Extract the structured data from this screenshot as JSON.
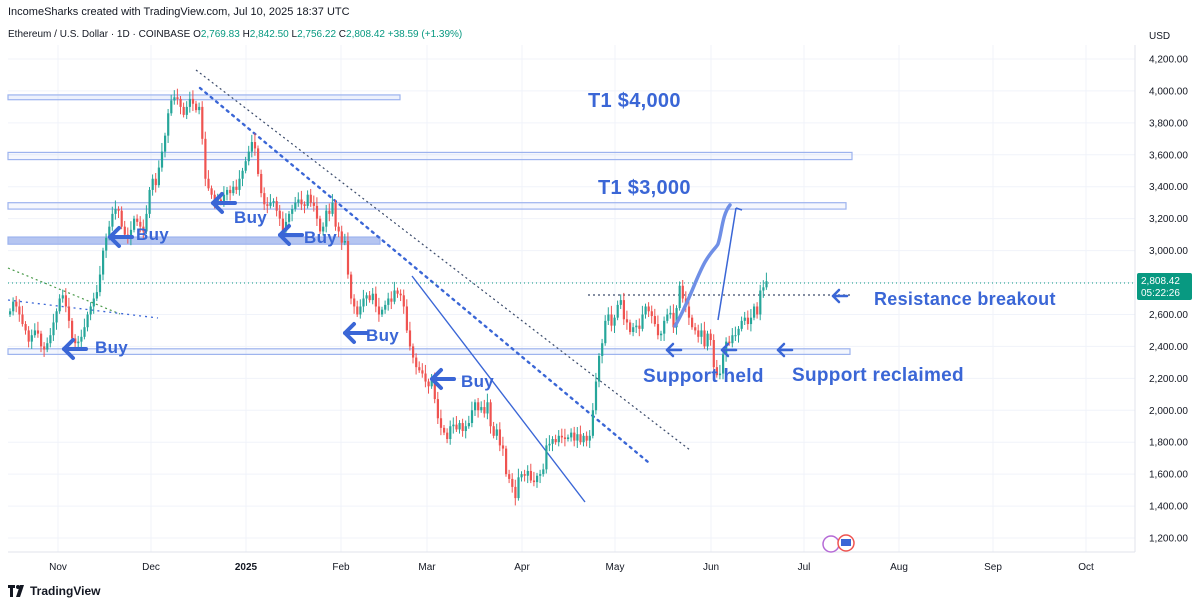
{
  "header": {
    "creator": "IncomeSharks created with TradingView.com, Jul 10, 2025 18:37 UTC",
    "symbol": "Ethereum / U.S. Dollar · 1D · COINBASE",
    "open_label": "O",
    "open": "2,769.83",
    "high_label": "H",
    "high": "2,842.50",
    "low_label": "L",
    "low": "2,756.22",
    "close_label": "C",
    "close": "2,808.42",
    "change": "+38.59 (+1.39%)"
  },
  "footer": {
    "brand": "TradingView"
  },
  "colors": {
    "up": "#26a69a",
    "down": "#ef5350",
    "annotation": "#3a66d6",
    "zone": "#9db3ee",
    "price_tag": "#089981"
  },
  "chart_data": {
    "type": "candlestick",
    "y_axis_title": "USD",
    "ylim": [
      1100,
      4300
    ],
    "y_ticks": [
      "1,200.00",
      "1,400.00",
      "1,600.00",
      "1,800.00",
      "2,000.00",
      "2,200.00",
      "2,400.00",
      "2,600.00",
      "2,800.00",
      "3,000.00",
      "3,200.00",
      "3,400.00",
      "3,600.00",
      "3,800.00",
      "4,000.00",
      "4,200.00"
    ],
    "x_ticks": [
      "Nov",
      "Dec",
      "2025",
      "Feb",
      "Mar",
      "Apr",
      "May",
      "Jun",
      "Jul",
      "Aug",
      "Sep",
      "Oct"
    ],
    "last_price": "2,808.42",
    "countdown": "05:22:26",
    "close_series": [
      2620,
      2680,
      2650,
      2600,
      2540,
      2500,
      2430,
      2470,
      2500,
      2480,
      2400,
      2380,
      2420,
      2470,
      2550,
      2620,
      2700,
      2720,
      2650,
      2560,
      2450,
      2420,
      2430,
      2460,
      2520,
      2600,
      2650,
      2700,
      2740,
      2850,
      3000,
      3080,
      3150,
      3230,
      3260,
      3250,
      3150,
      3100,
      3080,
      3130,
      3200,
      3180,
      3150,
      3120,
      3230,
      3380,
      3450,
      3410,
      3520,
      3620,
      3720,
      3860,
      3940,
      3960,
      3950,
      3900,
      3850,
      3900,
      3950,
      3920,
      3880,
      3900,
      3700,
      3450,
      3390,
      3350,
      3300,
      3320,
      3300,
      3350,
      3380,
      3360,
      3400,
      3380,
      3450,
      3500,
      3560,
      3620,
      3680,
      3640,
      3480,
      3360,
      3290,
      3280,
      3300,
      3310,
      3250,
      3200,
      3120,
      3180,
      3230,
      3260,
      3300,
      3320,
      3290,
      3280,
      3350,
      3300,
      3280,
      3200,
      3120,
      3150,
      3250,
      3230,
      3300,
      3150,
      3120,
      3050,
      3060,
      2850,
      2700,
      2650,
      2600,
      2650,
      2700,
      2720,
      2690,
      2730,
      2650,
      2600,
      2630,
      2660,
      2700,
      2680,
      2750,
      2730,
      2720,
      2650,
      2500,
      2400,
      2330,
      2270,
      2250,
      2230,
      2180,
      2150,
      2200,
      2070,
      1950,
      1890,
      1860,
      1820,
      1900,
      1910,
      1880,
      1920,
      1870,
      1900,
      1920,
      2000,
      2050,
      2000,
      2020,
      1980,
      2050,
      1900,
      1840,
      1880,
      1780,
      1760,
      1600,
      1570,
      1520,
      1450,
      1580,
      1600,
      1590,
      1620,
      1560,
      1550,
      1590,
      1600,
      1630,
      1780,
      1790,
      1820,
      1800,
      1840,
      1830,
      1820,
      1830,
      1860,
      1810,
      1850,
      1800,
      1840,
      1810,
      1840,
      2000,
      2180,
      2340,
      2420,
      2560,
      2600,
      2530,
      2580,
      2660,
      2690,
      2570,
      2550,
      2490,
      2520,
      2530,
      2510,
      2600,
      2650,
      2620,
      2590,
      2540,
      2470,
      2480,
      2560,
      2600,
      2610,
      2520,
      2640,
      2780,
      2700,
      2650,
      2580,
      2520,
      2500,
      2460,
      2500,
      2400,
      2480,
      2440,
      2270,
      2220,
      2230,
      2350,
      2430,
      2420,
      2470,
      2470,
      2510,
      2560,
      2580,
      2540,
      2580,
      2650,
      2600,
      2750,
      2770,
      2808
    ],
    "annotations": [
      {
        "text": "T1 $4,000"
      },
      {
        "text": "T1 $3,000"
      },
      {
        "text": "Resistance breakout"
      },
      {
        "text": "Support held"
      },
      {
        "text": "Support reclaimed"
      },
      {
        "text": "Buy"
      },
      {
        "text": "Buy"
      },
      {
        "text": "Buy"
      },
      {
        "text": "Buy"
      },
      {
        "text": "Buy"
      },
      {
        "text": "Buy"
      }
    ]
  }
}
